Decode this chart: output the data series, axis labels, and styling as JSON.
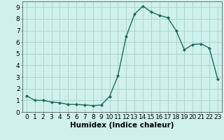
{
  "x": [
    0,
    1,
    2,
    3,
    4,
    5,
    6,
    7,
    8,
    9,
    10,
    11,
    12,
    13,
    14,
    15,
    16,
    17,
    18,
    19,
    20,
    21,
    22,
    23
  ],
  "y": [
    1.4,
    1.0,
    1.0,
    0.85,
    0.8,
    0.65,
    0.65,
    0.6,
    0.55,
    0.6,
    1.35,
    3.1,
    6.5,
    8.4,
    9.1,
    8.6,
    8.3,
    8.1,
    7.0,
    5.35,
    5.8,
    5.85,
    5.5,
    2.85
  ],
  "line_color": "#1a6b5a",
  "marker": "D",
  "marker_size": 2.0,
  "bg_color": "#cff0eb",
  "grid_color": "#aad8d0",
  "xlabel": "Humidex (Indice chaleur)",
  "ylabel": "",
  "xlim": [
    -0.5,
    23.5
  ],
  "ylim": [
    0,
    9.5
  ],
  "xticks": [
    0,
    1,
    2,
    3,
    4,
    5,
    6,
    7,
    8,
    9,
    10,
    11,
    12,
    13,
    14,
    15,
    16,
    17,
    18,
    19,
    20,
    21,
    22,
    23
  ],
  "yticks": [
    0,
    1,
    2,
    3,
    4,
    5,
    6,
    7,
    8,
    9
  ],
  "xlabel_fontsize": 7.5,
  "tick_fontsize": 6.5,
  "linewidth": 1.0
}
